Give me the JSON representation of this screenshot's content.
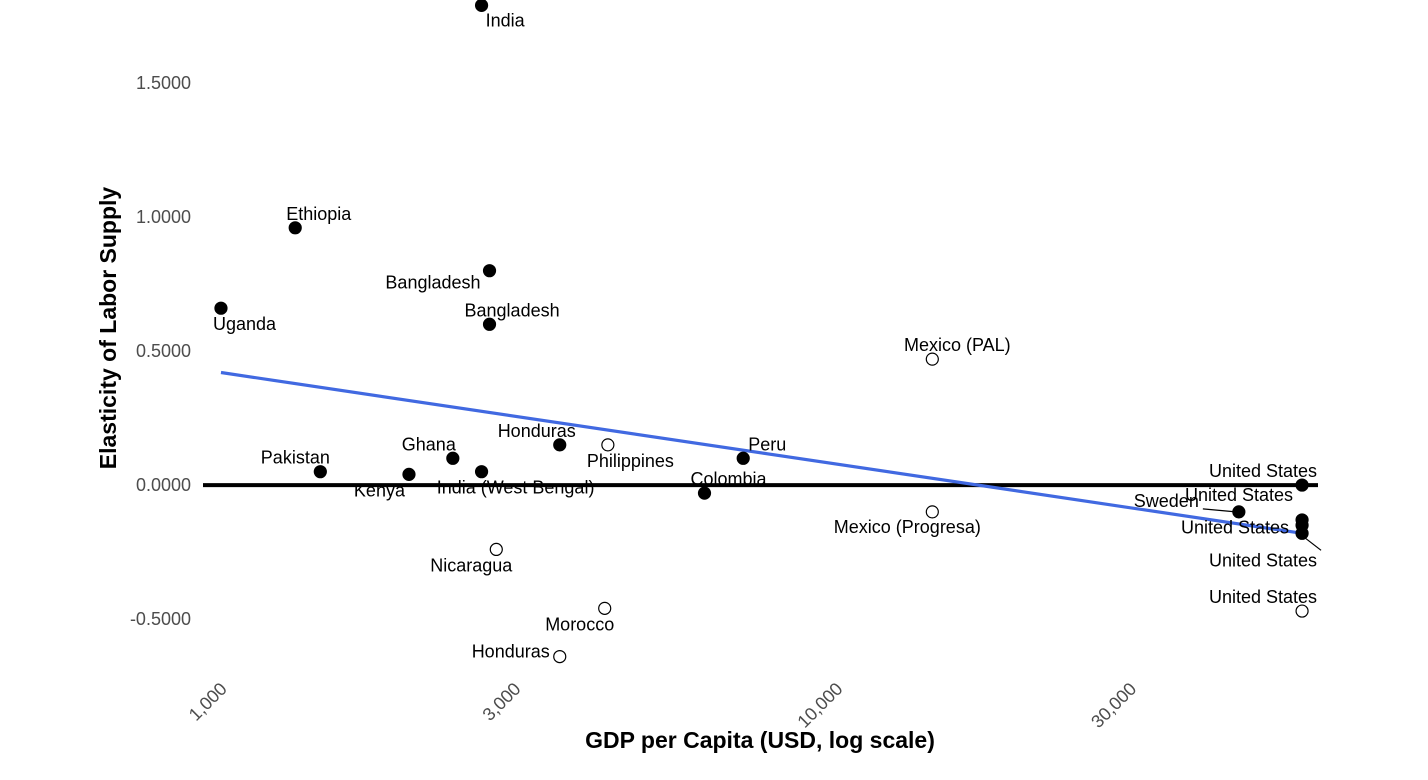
{
  "chart_data": {
    "type": "scatter",
    "title": "",
    "xlabel": "GDP per Capita (USD, log scale)",
    "ylabel": "Elasticity of Labor Supply",
    "x_scale": "log",
    "xlim": [
      935,
      60500
    ],
    "ylim": [
      -0.69,
      1.81
    ],
    "x_ticks": [
      {
        "value": 1000,
        "label": "1,000"
      },
      {
        "value": 3000,
        "label": "3,000"
      },
      {
        "value": 10000,
        "label": "10,000"
      },
      {
        "value": 30000,
        "label": "30,000"
      }
    ],
    "y_ticks": [
      {
        "value": -0.5,
        "label": "-0.5000"
      },
      {
        "value": 0.0,
        "label": "0.0000"
      },
      {
        "value": 0.5,
        "label": "0.5000"
      },
      {
        "value": 1.0,
        "label": "1.0000"
      },
      {
        "value": 1.5,
        "label": "1.5000"
      }
    ],
    "reference_line": {
      "y": 0,
      "color": "#000000"
    },
    "fit_line": {
      "color": "#4169E1",
      "x": [
        1000,
        57000
      ],
      "y": [
        0.42,
        -0.18
      ]
    },
    "legend": "none",
    "points": [
      {
        "label": "India",
        "x": 2650,
        "y": 1.79,
        "filled": true,
        "anchor": "start",
        "dx": 4,
        "dy": 21
      },
      {
        "label": "Ethiopia",
        "x": 1320,
        "y": 0.96,
        "filled": true,
        "anchor": "start",
        "dx": -9,
        "dy": -8
      },
      {
        "label": "Bangladesh",
        "x": 2730,
        "y": 0.8,
        "filled": true,
        "anchor": "end",
        "dx": -9,
        "dy": 18
      },
      {
        "label": "Uganda",
        "x": 1000,
        "y": 0.66,
        "filled": true,
        "anchor": "start",
        "dx": -8,
        "dy": 22
      },
      {
        "label": "Bangladesh",
        "x": 2730,
        "y": 0.6,
        "filled": true,
        "anchor": "start",
        "dx": -25,
        "dy": -8
      },
      {
        "label": "Mexico (PAL)",
        "x": 14300,
        "y": 0.47,
        "filled": false,
        "anchor": "middle",
        "dx": 25,
        "dy": -8
      },
      {
        "label": "Honduras",
        "x": 3550,
        "y": 0.15,
        "filled": true,
        "anchor": "end",
        "dx": 16,
        "dy": -8
      },
      {
        "label": "Philippines",
        "x": 4250,
        "y": 0.15,
        "filled": false,
        "anchor": "start",
        "dx": -21,
        "dy": 22
      },
      {
        "label": "Peru",
        "x": 7050,
        "y": 0.1,
        "filled": true,
        "anchor": "start",
        "dx": 5,
        "dy": -8
      },
      {
        "label": "Ghana",
        "x": 2380,
        "y": 0.1,
        "filled": true,
        "anchor": "end",
        "dx": 3,
        "dy": -8
      },
      {
        "label": "Pakistan",
        "x": 1450,
        "y": 0.05,
        "filled": true,
        "anchor": "middle",
        "dx": -25,
        "dy": -8
      },
      {
        "label": "India (West Bengal)",
        "x": 2650,
        "y": 0.05,
        "filled": true,
        "anchor": "middle",
        "dx": 34,
        "dy": 22
      },
      {
        "label": "Kenya",
        "x": 2020,
        "y": 0.04,
        "filled": true,
        "anchor": "end",
        "dx": -4,
        "dy": 22
      },
      {
        "label": "Colombia",
        "x": 6100,
        "y": -0.03,
        "filled": true,
        "anchor": "middle",
        "dx": 24,
        "dy": -8
      },
      {
        "label": "United States",
        "x": 57000,
        "y": 0.0,
        "filled": true,
        "anchor": "end",
        "dx": 15,
        "dy": -8
      },
      {
        "label": "Sweden",
        "x": 45000,
        "y": -0.1,
        "filled": true,
        "anchor": "end",
        "dx": -40,
        "dy": -5,
        "leader": true
      },
      {
        "label": "United States",
        "x": 57000,
        "y": -0.13,
        "filled": true,
        "anchor": "end",
        "dx": -9,
        "dy": -19
      },
      {
        "label": "United States",
        "x": 57000,
        "y": -0.15,
        "filled": true,
        "anchor": "end",
        "dx": -13,
        "dy": 8
      },
      {
        "label": "Mexico (Progresa)",
        "x": 14300,
        "y": -0.1,
        "filled": false,
        "anchor": "middle",
        "dx": -25,
        "dy": 21
      },
      {
        "label": "United States",
        "x": 57000,
        "y": -0.18,
        "filled": true,
        "anchor": "end",
        "dx": 15,
        "dy": 33,
        "leader": true
      },
      {
        "label": "Nicaragua",
        "x": 2800,
        "y": -0.24,
        "filled": false,
        "anchor": "middle",
        "dx": -25,
        "dy": 22
      },
      {
        "label": "United States",
        "x": 57000,
        "y": -0.47,
        "filled": false,
        "anchor": "end",
        "dx": 15,
        "dy": -8
      },
      {
        "label": "Morocco",
        "x": 4200,
        "y": -0.46,
        "filled": false,
        "anchor": "middle",
        "dx": -25,
        "dy": 22
      },
      {
        "label": "Honduras",
        "x": 3550,
        "y": -0.64,
        "filled": false,
        "anchor": "end",
        "dx": -10,
        "dy": 1
      }
    ]
  }
}
